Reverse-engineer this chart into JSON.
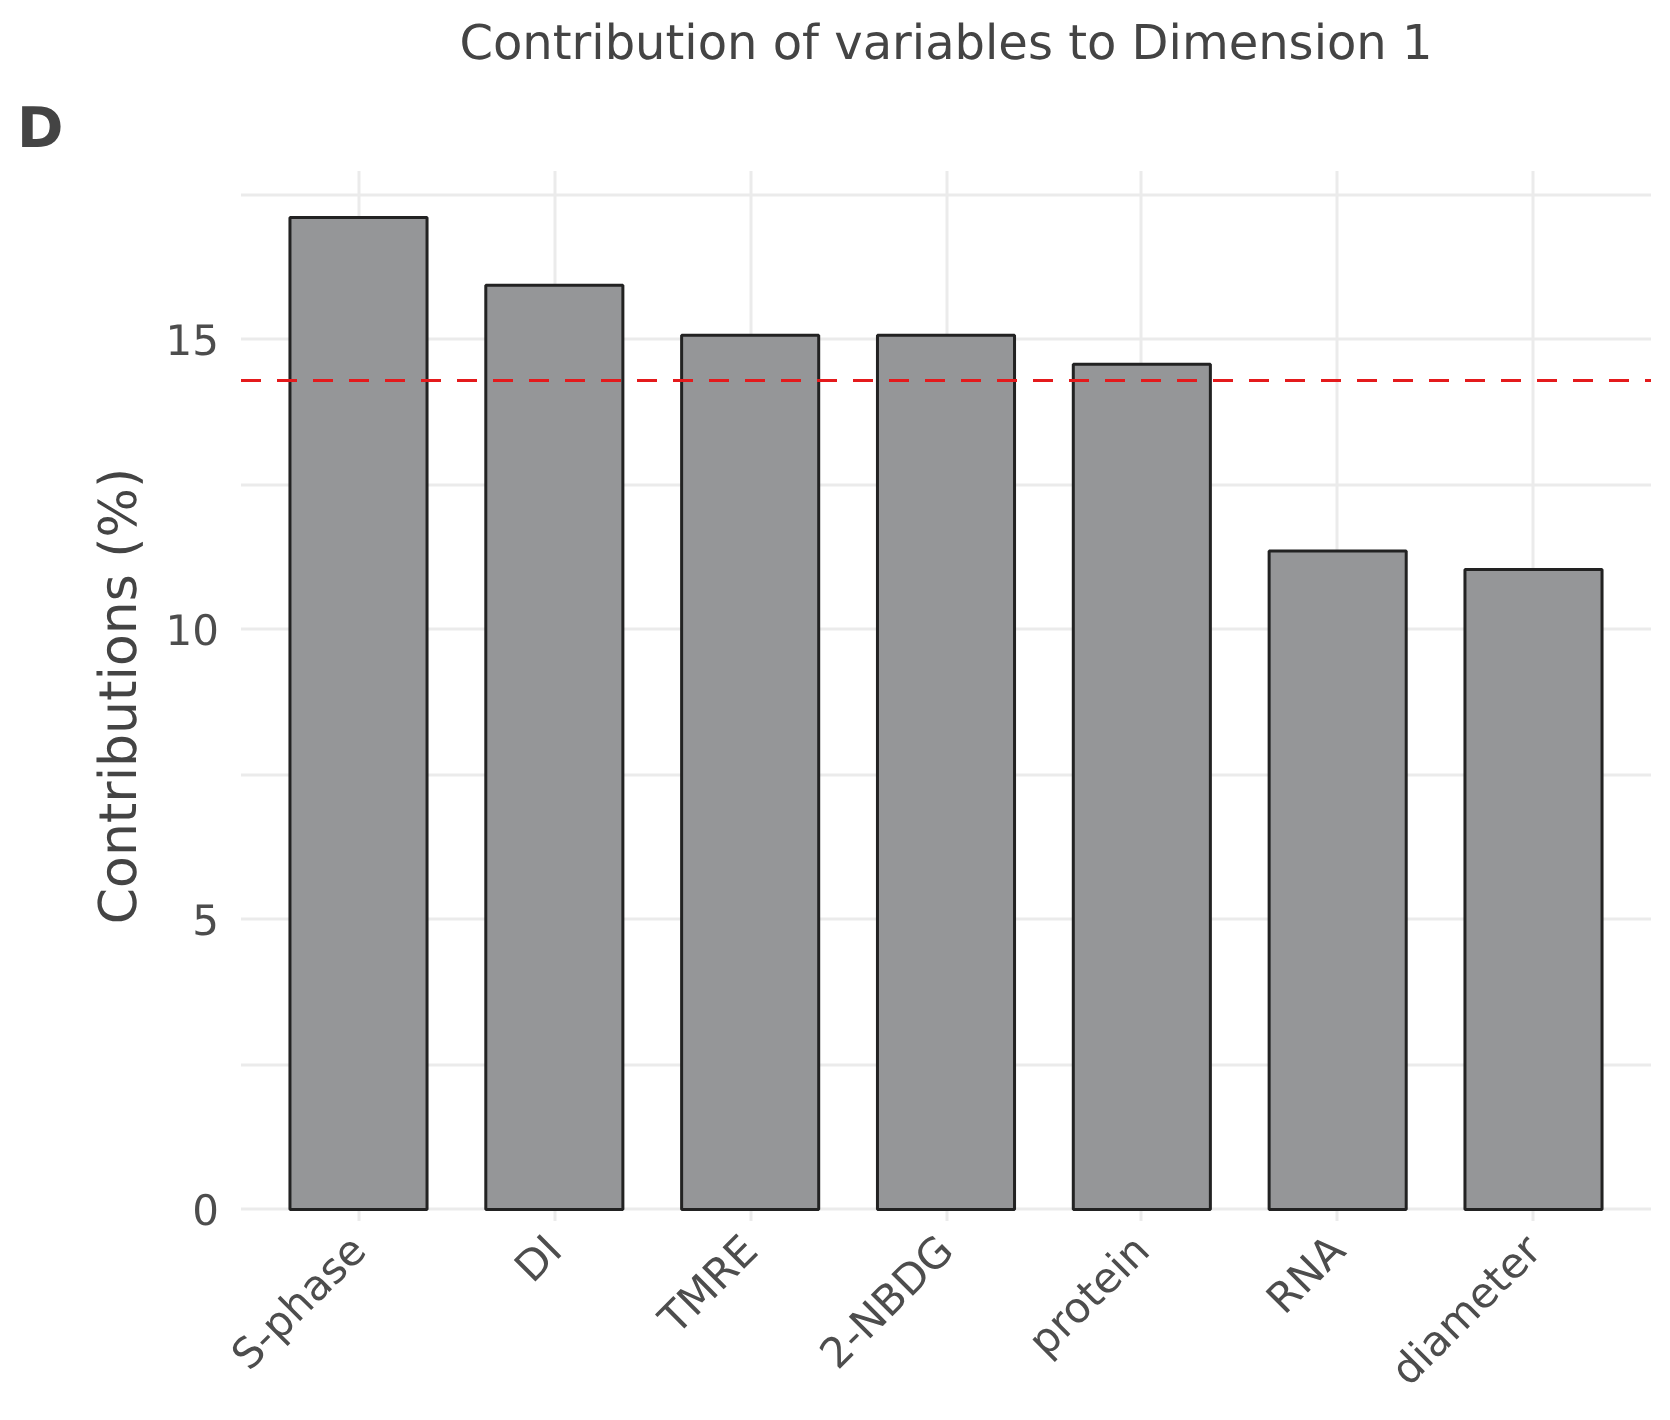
{
  "chart_data": {
    "type": "bar",
    "title": "Contribution of variables to Dimension 1",
    "ylabel": "Contributions (%)",
    "categories": [
      "S-phase",
      "DI",
      "TMRE",
      "2-NBDG",
      "protein",
      "RNA",
      "diameter"
    ],
    "values": [
      17.1,
      15.93,
      15.07,
      15.07,
      14.57,
      11.35,
      11.03
    ],
    "color": "#959698",
    "ylim": [
      -0.2,
      17.9
    ],
    "yticks": [
      0,
      {
        "value": 2.5,
        "label": null
      },
      5,
      {
        "value": 7.5,
        "label": null
      },
      10,
      {
        "value": 12.5,
        "label": null
      },
      15,
      {
        "value": 17.5,
        "label": null
      }
    ],
    "grid": true,
    "ref_lines": [
      {
        "axis": "y",
        "value": 14.29,
        "label": null,
        "color": "#e41a1c",
        "line_style": "dashed"
      }
    ],
    "annotations": [
      "D"
    ]
  }
}
